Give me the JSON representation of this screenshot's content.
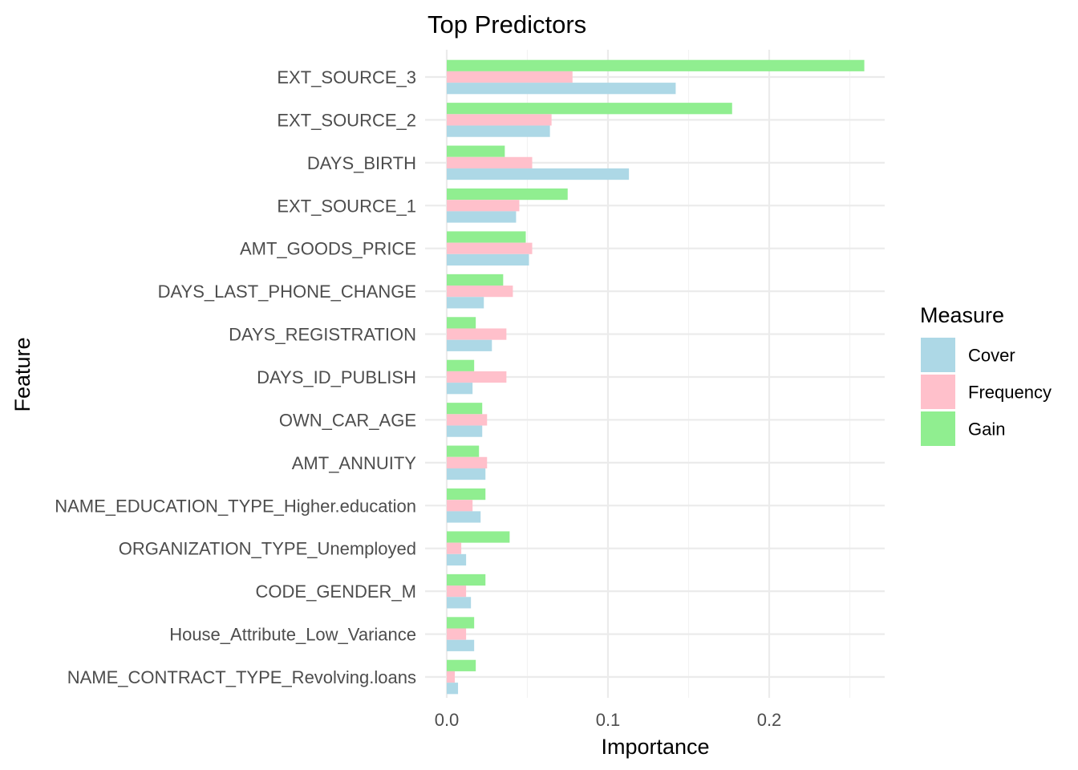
{
  "chart_data": {
    "type": "bar",
    "orientation": "horizontal",
    "title": "Top Predictors",
    "xlabel": "Importance",
    "ylabel": "Feature",
    "xlim": [
      0,
      0.27
    ],
    "x_ticks": [
      0.0,
      0.1,
      0.2
    ],
    "x_tick_labels": [
      "0.0",
      "0.1",
      "0.2"
    ],
    "grid": true,
    "legend": {
      "title": "Measure",
      "position": "right"
    },
    "categories": [
      "EXT_SOURCE_3",
      "EXT_SOURCE_2",
      "DAYS_BIRTH",
      "EXT_SOURCE_1",
      "AMT_GOODS_PRICE",
      "DAYS_LAST_PHONE_CHANGE",
      "DAYS_REGISTRATION",
      "DAYS_ID_PUBLISH",
      "OWN_CAR_AGE",
      "AMT_ANNUITY",
      "NAME_EDUCATION_TYPE_Higher.education",
      "ORGANIZATION_TYPE_Unemployed",
      "CODE_GENDER_M",
      "House_Attribute_Low_Variance",
      "NAME_CONTRACT_TYPE_Revolving.loans"
    ],
    "series": [
      {
        "name": "Cover",
        "color": "#add8e6",
        "values": [
          0.142,
          0.064,
          0.113,
          0.043,
          0.051,
          0.023,
          0.028,
          0.016,
          0.022,
          0.024,
          0.021,
          0.012,
          0.015,
          0.017,
          0.007
        ]
      },
      {
        "name": "Frequency",
        "color": "#ffc0cb",
        "values": [
          0.078,
          0.065,
          0.053,
          0.045,
          0.053,
          0.041,
          0.037,
          0.037,
          0.025,
          0.025,
          0.016,
          0.009,
          0.012,
          0.012,
          0.005
        ]
      },
      {
        "name": "Gain",
        "color": "#90ee90",
        "values": [
          0.259,
          0.177,
          0.036,
          0.075,
          0.049,
          0.035,
          0.018,
          0.017,
          0.022,
          0.02,
          0.024,
          0.039,
          0.024,
          0.017,
          0.018
        ]
      }
    ]
  }
}
